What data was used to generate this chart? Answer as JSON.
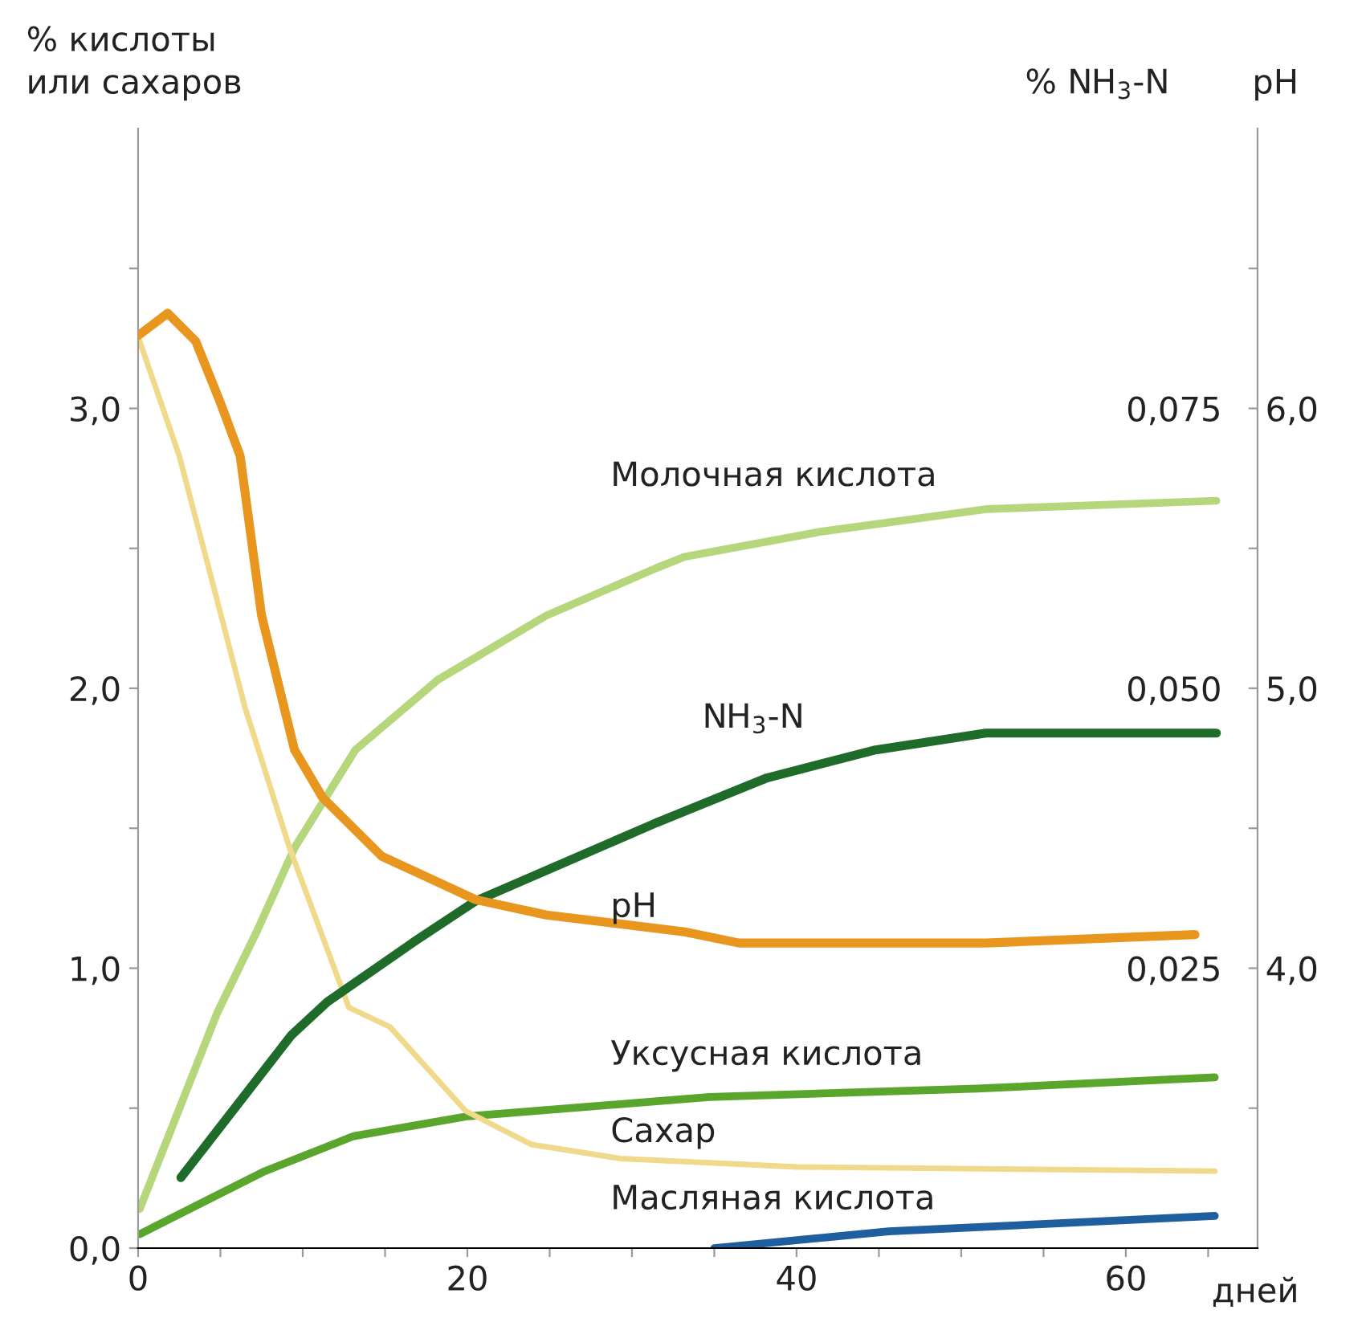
{
  "chart_data": {
    "type": "line",
    "xlabel": "дней",
    "ylabel": "% кислоты\nили сахаров",
    "y2label": "% NH$_{3}$-N",
    "y3label": "pH",
    "xlim": [
      0,
      68
    ],
    "ylim": [
      0,
      4.0
    ],
    "y2lim": [
      0,
      0.1
    ],
    "y3lim": [
      3,
      7
    ],
    "xticks": [
      0,
      {
        "value": 5,
        "label": null
      },
      {
        "value": 10,
        "label": null
      },
      {
        "value": 15,
        "label": null
      },
      20,
      {
        "value": 25,
        "label": null
      },
      {
        "value": 30,
        "label": null
      },
      {
        "value": 35,
        "label": null
      },
      40,
      {
        "value": 45,
        "label": null
      },
      {
        "value": 50,
        "label": null
      },
      {
        "value": 55,
        "label": null
      },
      60,
      {
        "value": 65,
        "label": null
      }
    ],
    "yticks": [
      {
        "value": 0,
        "label": "0,0"
      },
      {
        "value": 0.5,
        "label": null
      },
      {
        "value": 1,
        "label": "1,0"
      },
      {
        "value": 1.5,
        "label": null
      },
      {
        "value": 2,
        "label": "2,0"
      },
      {
        "value": 2.5,
        "label": null
      },
      {
        "value": 3,
        "label": "3,0"
      },
      {
        "value": 3.5,
        "label": null
      }
    ],
    "y2ticks": [
      {
        "value": 0.025,
        "label": "0,025"
      },
      {
        "value": 0.05,
        "label": "0,050"
      },
      {
        "value": 0.075,
        "label": "0,075"
      }
    ],
    "y3ticks": [
      {
        "value": 3.5,
        "label": null
      },
      {
        "value": 4,
        "label": "4,0"
      },
      {
        "value": 4.5,
        "label": null
      },
      {
        "value": 5,
        "label": "5,0"
      },
      {
        "value": 5.5,
        "label": null
      },
      {
        "value": 6,
        "label": "6,0"
      },
      {
        "value": 6.5,
        "label": null
      }
    ],
    "grid": false,
    "line_style": "solid",
    "marker": "none",
    "series": [
      {
        "name": "Молочная кислота",
        "color": "#b5d67a",
        "axis": "y",
        "x": [
          0.1,
          4.8,
          7.2,
          9.5,
          13.2,
          18.2,
          24.8,
          31.5,
          33.2,
          41.5,
          51.5,
          65.5
        ],
        "values": [
          0.14,
          0.84,
          1.13,
          1.43,
          1.78,
          2.03,
          2.26,
          2.43,
          2.47,
          2.56,
          2.64,
          2.67
        ]
      },
      {
        "name": "NH$_{3}$-N",
        "color": "#1f6b2a",
        "axis": "y2",
        "x": [
          2.6,
          9.3,
          11.5,
          16.9,
          20.5,
          31.5,
          38.2,
          44.8,
          51.5,
          65.5
        ],
        "values": [
          0.0063,
          0.019,
          0.022,
          0.0275,
          0.031,
          0.038,
          0.042,
          0.0445,
          0.046,
          0.046
        ]
      },
      {
        "name": "pH",
        "color": "#e8961e",
        "axis": "y3",
        "x": [
          0,
          1.8,
          3.5,
          5,
          6.2,
          7.5,
          9.5,
          11.2,
          14.8,
          20.5,
          24.8,
          33.2,
          36.5,
          51.5,
          64.2
        ],
        "values": [
          6.26,
          6.34,
          6.24,
          6.02,
          5.83,
          5.26,
          4.78,
          4.61,
          4.4,
          4.245,
          4.19,
          4.13,
          4.09,
          4.09,
          4.12
        ]
      },
      {
        "name": "Уксусная кислота",
        "color": "#5aa62c",
        "axis": "y",
        "x": [
          0.1,
          7.7,
          13.1,
          19.9,
          34.7,
          51,
          65.4
        ],
        "values": [
          0.05,
          0.275,
          0.4,
          0.47,
          0.54,
          0.57,
          0.61
        ]
      },
      {
        "name": "Сахар",
        "color": "#f0d98a",
        "axis": "y",
        "x": [
          0.1,
          2.5,
          4.2,
          6.5,
          9.2,
          12.8,
          15.3,
          19.9,
          23.9,
          29.3,
          40.1,
          65.4
        ],
        "values": [
          3.24,
          2.83,
          2.45,
          1.93,
          1.43,
          0.86,
          0.79,
          0.49,
          0.37,
          0.32,
          0.29,
          0.275
        ]
      },
      {
        "name": "Масляная кислота",
        "color": "#1f5fa0",
        "axis": "y",
        "x": [
          35,
          45.6,
          65.4
        ],
        "values": [
          0.0,
          0.06,
          0.115
        ]
      }
    ]
  }
}
